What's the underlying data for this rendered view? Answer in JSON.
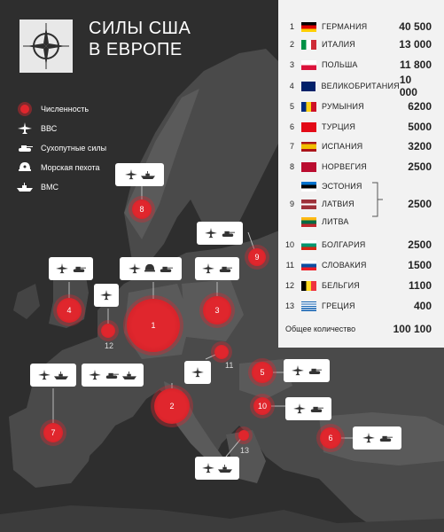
{
  "title": {
    "line1": "СИЛЫ США",
    "line2": "В ЕВРОПЕ"
  },
  "legend": [
    {
      "icon": "size-circle-icon",
      "label": "Численность"
    },
    {
      "icon": "aircraft-icon",
      "label": "ВВС"
    },
    {
      "icon": "tank-icon",
      "label": "Сухопутные силы"
    },
    {
      "icon": "marine-helmet-icon",
      "label": "Морская пехота"
    },
    {
      "icon": "ship-icon",
      "label": "ВМС"
    }
  ],
  "countries": [
    {
      "num": "1",
      "flag": "germany",
      "name": "ГЕРМАНИЯ",
      "value": "40 500"
    },
    {
      "num": "2",
      "flag": "italy",
      "name": "ИТАЛИЯ",
      "value": "13 000"
    },
    {
      "num": "3",
      "flag": "poland",
      "name": "ПОЛЬША",
      "value": "11 800"
    },
    {
      "num": "4",
      "flag": "uk",
      "name": "ВЕЛИКОБРИТАНИЯ",
      "value": "10 000"
    },
    {
      "num": "5",
      "flag": "romania",
      "name": "РУМЫНИЯ",
      "value": "6200"
    },
    {
      "num": "6",
      "flag": "turkey",
      "name": "ТУРЦИЯ",
      "value": "5000"
    },
    {
      "num": "7",
      "flag": "spain",
      "name": "ИСПАНИЯ",
      "value": "3200"
    },
    {
      "num": "8",
      "flag": "norway",
      "name": "НОРВЕГИЯ",
      "value": "2500"
    },
    {
      "num": "10",
      "flag": "bulgaria",
      "name": "БОЛГАРИЯ",
      "value": "2500"
    },
    {
      "num": "11",
      "flag": "slovakia",
      "name": "СЛОВАКИЯ",
      "value": "1500"
    },
    {
      "num": "12",
      "flag": "belgium",
      "name": "БЕЛЬГИЯ",
      "value": "1100"
    },
    {
      "num": "13",
      "flag": "greece",
      "name": "ГРЕЦИЯ",
      "value": "400"
    }
  ],
  "baltic": {
    "num": "9",
    "value": "2500",
    "items": [
      {
        "flag": "estonia",
        "name": "ЭСТОНИЯ"
      },
      {
        "flag": "latvia",
        "name": "ЛАТВИЯ"
      },
      {
        "flag": "lithuania",
        "name": "ЛИТВА"
      }
    ]
  },
  "total": {
    "label": "Общее количество",
    "value": "100 100"
  },
  "markers": [
    {
      "num": "1",
      "forces": [
        "aircraft",
        "marine",
        "tank"
      ]
    },
    {
      "num": "2",
      "forces": [
        "aircraft",
        "tank",
        "ship"
      ]
    },
    {
      "num": "3",
      "forces": [
        "aircraft",
        "tank"
      ]
    },
    {
      "num": "4",
      "forces": [
        "aircraft",
        "tank"
      ]
    },
    {
      "num": "5",
      "forces": [
        "aircraft",
        "tank"
      ]
    },
    {
      "num": "6",
      "forces": [
        "aircraft",
        "tank"
      ]
    },
    {
      "num": "7",
      "forces": [
        "aircraft",
        "ship"
      ]
    },
    {
      "num": "8",
      "forces": [
        "aircraft",
        "ship"
      ]
    },
    {
      "num": "9",
      "forces": [
        "aircraft",
        "tank"
      ]
    },
    {
      "num": "10",
      "forces": [
        "aircraft",
        "tank"
      ]
    },
    {
      "num": "11",
      "forces": [
        "aircraft"
      ]
    },
    {
      "num": "12",
      "forces": [
        "aircraft"
      ]
    },
    {
      "num": "13",
      "forces": [
        "aircraft",
        "ship"
      ]
    }
  ],
  "colors": {
    "background": "#2e2e2e",
    "land": "#4a4a4a",
    "accent": "#e0262d",
    "panel": "#f2f2f2"
  }
}
